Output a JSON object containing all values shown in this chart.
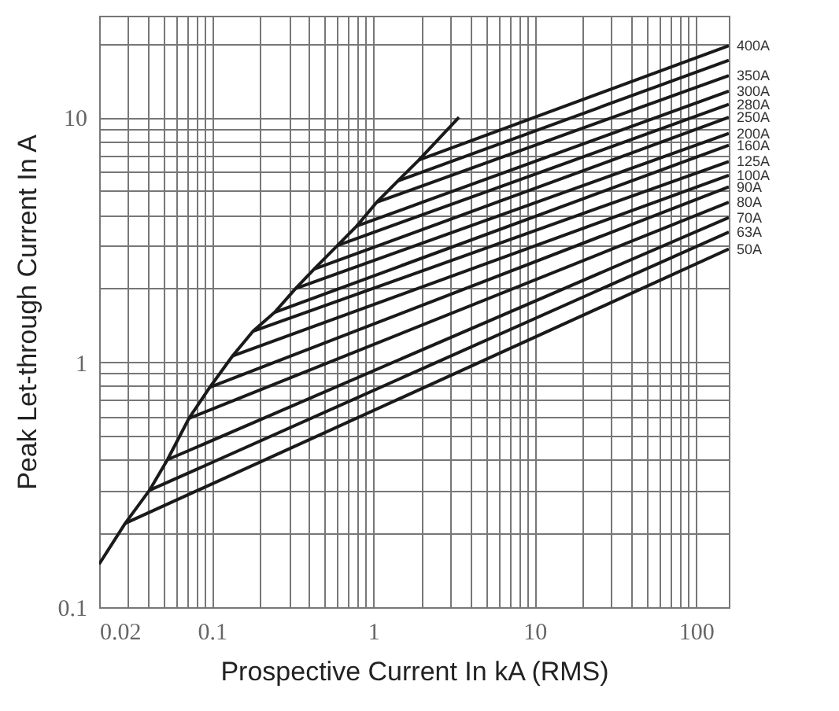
{
  "chart_data": {
    "type": "line",
    "xlabel": "Prospective Current In kA (RMS)",
    "ylabel": "Peak Let-through Current In A",
    "log": "xy",
    "grid": true,
    "legend": false,
    "marker": "none",
    "line_style": "solid",
    "xlim": [
      0.02,
      160
    ],
    "ylim": [
      0.1,
      26
    ],
    "xticks": [
      "0.02",
      {
        "value": 0.03,
        "label": null
      },
      {
        "value": 0.04,
        "label": null
      },
      {
        "value": 0.05,
        "label": null
      },
      {
        "value": 0.06,
        "label": null
      },
      {
        "value": 0.07,
        "label": null
      },
      {
        "value": 0.08,
        "label": null
      },
      {
        "value": 0.09,
        "label": null
      },
      0.1,
      {
        "value": 0.2,
        "label": null
      },
      {
        "value": 0.3,
        "label": null
      },
      {
        "value": 0.4,
        "label": null
      },
      {
        "value": 0.5,
        "label": null
      },
      {
        "value": 0.6,
        "label": null
      },
      {
        "value": 0.7,
        "label": null
      },
      {
        "value": 0.8,
        "label": null
      },
      {
        "value": 0.9,
        "label": null
      },
      1,
      {
        "value": 2,
        "label": null
      },
      {
        "value": 3,
        "label": null
      },
      {
        "value": 4,
        "label": null
      },
      {
        "value": 5,
        "label": null
      },
      {
        "value": 6,
        "label": null
      },
      {
        "value": 7,
        "label": null
      },
      {
        "value": 8,
        "label": null
      },
      {
        "value": 9,
        "label": null
      },
      10,
      {
        "value": 20,
        "label": null
      },
      {
        "value": 30,
        "label": null
      },
      {
        "value": 40,
        "label": null
      },
      {
        "value": 50,
        "label": null
      },
      {
        "value": 60,
        "label": null
      },
      {
        "value": 70,
        "label": null
      },
      {
        "value": 80,
        "label": null
      },
      {
        "value": 90,
        "label": null
      },
      100
    ],
    "yticks": [
      0.1,
      {
        "value": 0.2,
        "label": null
      },
      {
        "value": 0.3,
        "label": null
      },
      {
        "value": 0.4,
        "label": null
      },
      {
        "value": 0.5,
        "label": null
      },
      {
        "value": 0.6,
        "label": null
      },
      {
        "value": 0.7,
        "label": null
      },
      {
        "value": 0.8,
        "label": null
      },
      {
        "value": 0.9,
        "label": null
      },
      1,
      {
        "value": 2,
        "label": null
      },
      {
        "value": 3,
        "label": null
      },
      {
        "value": 4,
        "label": null
      },
      {
        "value": 5,
        "label": null
      },
      {
        "value": 6,
        "label": null
      },
      {
        "value": 7,
        "label": null
      },
      {
        "value": 8,
        "label": null
      },
      {
        "value": 9,
        "label": null
      },
      10,
      {
        "value": 20,
        "label": null
      }
    ],
    "series": [
      {
        "color": "#1a1a1a",
        "x": [
          0.02,
          0.029,
          0.041,
          0.053,
          0.072,
          0.097,
          0.134,
          0.18,
          0.245,
          0.33,
          0.43,
          0.6,
          0.79,
          1.05,
          1.42,
          1.92,
          3.4
        ],
        "values": [
          0.15,
          0.22,
          0.3,
          0.4,
          0.59,
          0.79,
          1.06,
          1.34,
          1.6,
          2.0,
          2.4,
          3.0,
          3.6,
          4.5,
          5.5,
          6.7,
          10
        ]
      },
      {
        "name": "400A",
        "color": "#1a1a1a",
        "x": [
          1.92,
          160
        ],
        "values": [
          6.7,
          19.6
        ]
      },
      {
        "color": "#1a1a1a",
        "x": [
          1.42,
          160
        ],
        "values": [
          5.5,
          17.1
        ]
      },
      {
        "name": "350A",
        "color": "#1a1a1a",
        "x": [
          1.05,
          160
        ],
        "values": [
          4.5,
          14.8
        ]
      },
      {
        "name": "300A",
        "color": "#1a1a1a",
        "x": [
          0.79,
          160
        ],
        "values": [
          3.6,
          12.8
        ]
      },
      {
        "name": "280A",
        "color": "#1a1a1a",
        "x": [
          0.6,
          160
        ],
        "values": [
          3.0,
          11.3
        ]
      },
      {
        "name": "250A",
        "color": "#1a1a1a",
        "x": [
          0.43,
          160
        ],
        "values": [
          2.4,
          10
        ]
      },
      {
        "name": "200A",
        "color": "#1a1a1a",
        "x": [
          0.33,
          160
        ],
        "values": [
          2.0,
          8.6
        ]
      },
      {
        "name": "160A",
        "color": "#1a1a1a",
        "x": [
          0.245,
          160
        ],
        "values": [
          1.6,
          7.7
        ]
      },
      {
        "name": "125A",
        "color": "#1a1a1a",
        "x": [
          0.18,
          160
        ],
        "values": [
          1.34,
          6.6
        ]
      },
      {
        "name": "100A",
        "color": "#1a1a1a",
        "x": [
          0.134,
          160
        ],
        "values": [
          1.06,
          5.8
        ]
      },
      {
        "name": "90A",
        "color": "#1a1a1a",
        "x": [
          0.097,
          160
        ],
        "values": [
          0.79,
          5.2
        ]
      },
      {
        "name": "80A",
        "color": "#1a1a1a",
        "x": [
          0.072,
          160
        ],
        "values": [
          0.59,
          4.5
        ]
      },
      {
        "name": "70A",
        "color": "#1a1a1a",
        "x": [
          0.053,
          160
        ],
        "values": [
          0.4,
          3.9
        ]
      },
      {
        "name": "63A",
        "color": "#1a1a1a",
        "x": [
          0.041,
          160
        ],
        "values": [
          0.3,
          3.4
        ]
      },
      {
        "name": "50A",
        "color": "#1a1a1a",
        "x": [
          0.029,
          160
        ],
        "values": [
          0.22,
          2.9
        ]
      }
    ]
  }
}
